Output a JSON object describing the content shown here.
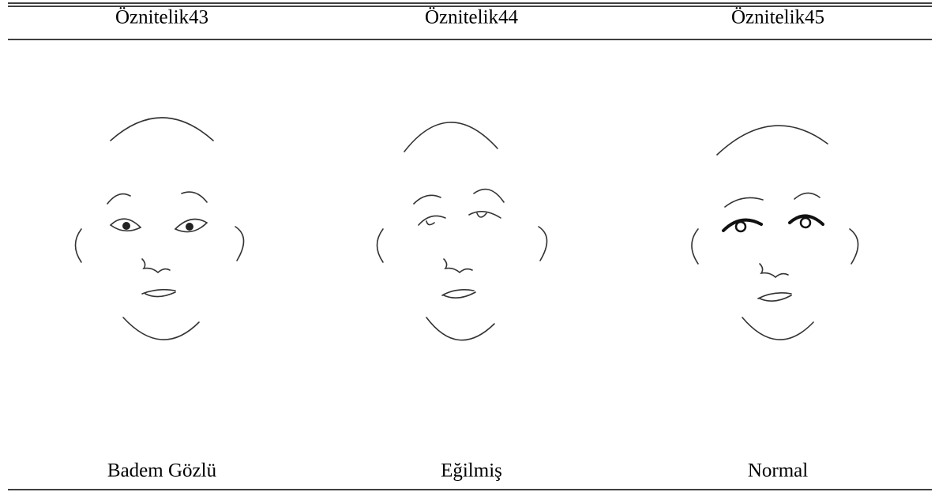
{
  "table": {
    "header": [
      "Öznitelik43",
      "Öznitelik44",
      "Öznitelik45"
    ],
    "labels": [
      "Badem Gözlü",
      "Eğilmiş",
      "Normal"
    ]
  }
}
